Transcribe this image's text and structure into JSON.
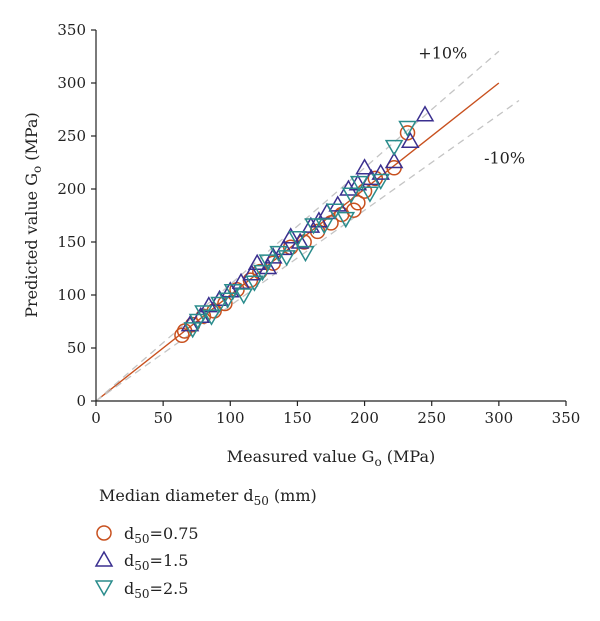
{
  "chart_data": {
    "type": "scatter",
    "xlabel": {
      "main": "Measured value G",
      "sub": "o",
      "unit": " (MPa)"
    },
    "ylabel": {
      "main": "Predicted value G",
      "sub": "o",
      "unit": " (MPa)"
    },
    "xlim": [
      0,
      350
    ],
    "ylim": [
      0,
      350
    ],
    "xticks": [
      0,
      50,
      100,
      150,
      200,
      250,
      300,
      350
    ],
    "yticks": [
      0,
      50,
      100,
      150,
      200,
      250,
      300,
      350
    ],
    "grid": false,
    "reference_lines": [
      {
        "kind": "equality",
        "x": [
          0,
          300
        ],
        "y": [
          0,
          300
        ],
        "color": "#c8501e",
        "style": "solid"
      },
      {
        "kind": "plus10",
        "x": [
          0,
          300
        ],
        "y": [
          0,
          330
        ],
        "color": "#c4c4c4",
        "style": "dashed",
        "label": "+10%",
        "label_at": [
          240,
          323
        ]
      },
      {
        "kind": "minus10",
        "x": [
          0,
          315
        ],
        "y": [
          0,
          283.5
        ],
        "color": "#c4c4c4",
        "style": "dashed",
        "label": "-10%",
        "label_at": [
          289,
          224
        ]
      }
    ],
    "legend": {
      "title": {
        "main": "Median diameter d",
        "sub": "50",
        "unit": " (mm)"
      },
      "placement": "bottom-left"
    },
    "series": [
      {
        "name": "d50=0.75",
        "label": {
          "pre": "d",
          "sub": "50",
          "post": "=0.75"
        },
        "marker": "circle",
        "color": "#c8501e",
        "points": [
          [
            64,
            62
          ],
          [
            66,
            66
          ],
          [
            72,
            72
          ],
          [
            80,
            80
          ],
          [
            88,
            85
          ],
          [
            96,
            92
          ],
          [
            105,
            105
          ],
          [
            115,
            114
          ],
          [
            122,
            122
          ],
          [
            132,
            130
          ],
          [
            145,
            145
          ],
          [
            155,
            150
          ],
          [
            165,
            160
          ],
          [
            175,
            168
          ],
          [
            183,
            176
          ],
          [
            192,
            180
          ],
          [
            195,
            187
          ],
          [
            200,
            198
          ],
          [
            208,
            210
          ],
          [
            222,
            220
          ],
          [
            232,
            253
          ]
        ]
      },
      {
        "name": "d50=1.5",
        "label": {
          "pre": "d",
          "sub": "50",
          "post": "=1.5"
        },
        "marker": "triangle-up",
        "color": "#3a2f8f",
        "points": [
          [
            70,
            72
          ],
          [
            78,
            80
          ],
          [
            84,
            90
          ],
          [
            92,
            96
          ],
          [
            100,
            104
          ],
          [
            108,
            112
          ],
          [
            116,
            120
          ],
          [
            120,
            130
          ],
          [
            128,
            126
          ],
          [
            132,
            136
          ],
          [
            140,
            144
          ],
          [
            145,
            155
          ],
          [
            152,
            150
          ],
          [
            160,
            165
          ],
          [
            166,
            170
          ],
          [
            172,
            178
          ],
          [
            180,
            185
          ],
          [
            188,
            200
          ],
          [
            195,
            205
          ],
          [
            200,
            220
          ],
          [
            205,
            210
          ],
          [
            212,
            215
          ],
          [
            222,
            226
          ],
          [
            234,
            245
          ],
          [
            245,
            270
          ]
        ]
      },
      {
        "name": "d50=2.5",
        "label": {
          "pre": "d",
          "sub": "50",
          "post": "=2.5"
        },
        "marker": "triangle-down",
        "color": "#2a8c8c",
        "points": [
          [
            72,
            68
          ],
          [
            76,
            76
          ],
          [
            80,
            84
          ],
          [
            86,
            80
          ],
          [
            92,
            92
          ],
          [
            98,
            96
          ],
          [
            102,
            104
          ],
          [
            110,
            100
          ],
          [
            118,
            112
          ],
          [
            124,
            122
          ],
          [
            128,
            132
          ],
          [
            136,
            140
          ],
          [
            142,
            136
          ],
          [
            150,
            154
          ],
          [
            156,
            140
          ],
          [
            162,
            166
          ],
          [
            170,
            166
          ],
          [
            178,
            180
          ],
          [
            186,
            172
          ],
          [
            190,
            195
          ],
          [
            196,
            206
          ],
          [
            204,
            196
          ],
          [
            212,
            208
          ],
          [
            222,
            240
          ],
          [
            232,
            258
          ]
        ]
      }
    ]
  }
}
